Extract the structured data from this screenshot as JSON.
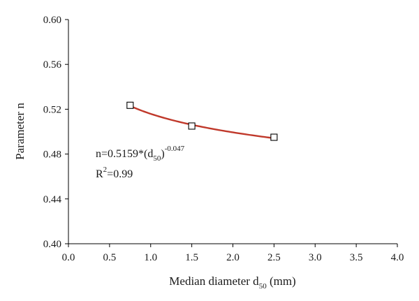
{
  "chart_data": {
    "type": "scatter",
    "title": "",
    "xlabel": {
      "text": "Median diameter d",
      "sub": "50",
      "suffix": " (mm)"
    },
    "ylabel": "Parameter n",
    "xlim": [
      0.0,
      4.0
    ],
    "ylim": [
      0.4,
      0.6
    ],
    "xticks": [
      "0.0",
      "0.5",
      "1.0",
      "1.5",
      "2.0",
      "2.5",
      "3.0",
      "3.5",
      "4.0"
    ],
    "yticks": [
      "0.40",
      "0.44",
      "0.48",
      "0.52",
      "0.56",
      "0.60"
    ],
    "grid": false,
    "series": [
      {
        "marker": "open-square",
        "x": [
          0.75,
          1.5,
          2.5
        ],
        "y": [
          0.5235,
          0.505,
          0.495
        ]
      }
    ],
    "fit": {
      "coefficient": 0.5159,
      "exponent": -0.047,
      "x_range": [
        0.75,
        2.5
      ],
      "color": "#c0392b"
    },
    "annotations": {
      "equation": {
        "main": "n=0.5159*(d",
        "sub": "50",
        "close": ")",
        "sup": "-0.047"
      },
      "r2": {
        "main": "R",
        "sup": "2",
        "rest": "=0.99"
      }
    }
  }
}
